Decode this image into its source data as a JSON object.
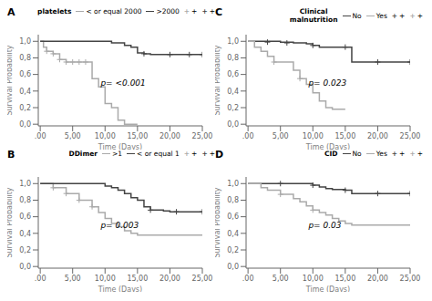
{
  "chart_data": [
    {
      "type": "step",
      "title": "A",
      "annotation": "p= <0.001",
      "legend_title": "platelets",
      "legend": "upper right",
      "xlabel": "Time (Days)",
      "ylabel": "Survival Probability",
      "xlim": [
        -0.3,
        25
      ],
      "ylim": [
        -0.02,
        1.08
      ],
      "xticks": [
        {
          "value": 0,
          "label": ".00"
        },
        {
          "value": 5,
          "label": "5,00"
        },
        {
          "value": 10,
          "label": "10,00"
        },
        {
          "value": 15,
          "label": "15,00"
        },
        {
          "value": 20,
          "label": "20,00"
        },
        {
          "value": 25,
          "label": "25,00"
        }
      ],
      "yticks": [
        {
          "value": 0.0,
          "label": "0,0"
        },
        {
          "value": 0.2,
          "label": "0,2"
        },
        {
          "value": 0.4,
          "label": "0,4"
        },
        {
          "value": 0.6,
          "label": "0,6"
        },
        {
          "value": 0.8,
          "label": "0,8"
        },
        {
          "value": 1.0,
          "label": "1,0"
        }
      ],
      "series": [
        {
          "name": "< or equal 2000",
          "color": "#aaaaaa",
          "type": "step",
          "x": [
            0,
            0.5,
            1,
            2,
            3,
            4,
            5,
            6,
            7,
            8,
            9,
            10,
            11,
            12,
            13,
            14,
            15
          ],
          "values": [
            1.0,
            0.93,
            0.88,
            0.85,
            0.78,
            0.75,
            0.75,
            0.75,
            0.75,
            0.55,
            0.45,
            0.25,
            0.2,
            0.05,
            0.0,
            0.0,
            0.0
          ]
        },
        {
          "name": ">2000",
          "color": "#444444",
          "type": "step",
          "x": [
            0,
            10,
            11,
            12,
            13,
            14,
            15,
            16,
            17,
            18,
            19,
            20,
            21,
            22,
            23,
            24,
            25
          ],
          "values": [
            1.0,
            1.0,
            0.98,
            0.98,
            0.95,
            0.93,
            0.86,
            0.85,
            0.84,
            0.84,
            0.84,
            0.84,
            0.84,
            0.84,
            0.84,
            0.84,
            0.84
          ]
        },
        {
          "name": "+",
          "color": "#aaaaaa",
          "type": "scatter",
          "marker": "+",
          "x": [
            1,
            2,
            3,
            4,
            5,
            6,
            7
          ],
          "values": [
            0.88,
            0.85,
            0.78,
            0.75,
            0.75,
            0.75,
            0.75
          ]
        },
        {
          "name": "+",
          "color": "#444444",
          "type": "scatter",
          "marker": "+",
          "x": [
            16,
            20,
            23,
            25
          ],
          "values": [
            0.85,
            0.84,
            0.84,
            0.84
          ]
        }
      ]
    },
    {
      "type": "step",
      "title": "B",
      "annotation": "p= 0.003",
      "legend_title": "DDimer",
      "legend": "upper right",
      "xlabel": "Time (Days)",
      "ylabel": "Survival Probability",
      "xlim": [
        -0.3,
        25
      ],
      "ylim": [
        -0.02,
        1.08
      ],
      "xticks": [
        {
          "value": 0,
          "label": ".00"
        },
        {
          "value": 5,
          "label": "5,00"
        },
        {
          "value": 10,
          "label": "10,00"
        },
        {
          "value": 15,
          "label": "15,00"
        },
        {
          "value": 20,
          "label": "20,00"
        },
        {
          "value": 25,
          "label": "25,00"
        }
      ],
      "yticks": [
        {
          "value": 0.0,
          "label": "0,0"
        },
        {
          "value": 0.2,
          "label": "0,2"
        },
        {
          "value": 0.4,
          "label": "0,4"
        },
        {
          "value": 0.6,
          "label": "0,6"
        },
        {
          "value": 0.8,
          "label": "0,8"
        },
        {
          "value": 1.0,
          "label": "1,0"
        }
      ],
      "series": [
        {
          "name": ">1",
          "color": "#aaaaaa",
          "type": "step",
          "x": [
            0,
            2,
            4,
            6,
            8,
            9,
            10,
            11,
            12,
            13,
            14,
            15,
            16,
            25
          ],
          "values": [
            1.0,
            0.95,
            0.88,
            0.8,
            0.72,
            0.65,
            0.58,
            0.52,
            0.48,
            0.43,
            0.4,
            0.38,
            0.38,
            0.38
          ]
        },
        {
          "name": "< or equal 1",
          "color": "#444444",
          "type": "step",
          "x": [
            0,
            9,
            10,
            11,
            12,
            13,
            14,
            15,
            16,
            17,
            18,
            19,
            20,
            21,
            22,
            25
          ],
          "values": [
            1.0,
            1.0,
            0.97,
            0.95,
            0.92,
            0.88,
            0.83,
            0.8,
            0.72,
            0.68,
            0.68,
            0.67,
            0.66,
            0.66,
            0.66,
            0.66
          ]
        },
        {
          "name": "+",
          "color": "#aaaaaa",
          "type": "scatter",
          "marker": "+",
          "x": [
            2,
            4,
            6,
            8
          ],
          "values": [
            0.95,
            0.88,
            0.8,
            0.72
          ]
        },
        {
          "name": "+",
          "color": "#444444",
          "type": "scatter",
          "marker": "+",
          "x": [
            17,
            21,
            25
          ],
          "values": [
            0.68,
            0.66,
            0.66
          ]
        }
      ]
    },
    {
      "type": "step",
      "title": "C",
      "annotation": "p= 0.023",
      "legend_title": "Clinical\nmalnutrition",
      "legend": "upper right",
      "xlabel": "Time (Days)",
      "ylabel": "Survival Probability",
      "xlim": [
        -0.3,
        25
      ],
      "ylim": [
        -0.02,
        1.08
      ],
      "xticks": [
        {
          "value": 0,
          "label": ".00"
        },
        {
          "value": 5,
          "label": "5,00"
        },
        {
          "value": 10,
          "label": "10,00"
        },
        {
          "value": 15,
          "label": "15,00"
        },
        {
          "value": 20,
          "label": "20,00"
        },
        {
          "value": 25,
          "label": "25,00"
        }
      ],
      "yticks": [
        {
          "value": 0.0,
          "label": "0,0"
        },
        {
          "value": 0.2,
          "label": "0,2"
        },
        {
          "value": 0.4,
          "label": "0,4"
        },
        {
          "value": 0.6,
          "label": "0,6"
        },
        {
          "value": 0.8,
          "label": "0,8"
        },
        {
          "value": 1.0,
          "label": "1,0"
        }
      ],
      "series": [
        {
          "name": "No",
          "color": "#444444",
          "type": "step",
          "x": [
            0,
            5,
            7,
            9,
            10,
            11,
            12,
            13,
            14,
            15,
            16,
            17,
            18,
            19,
            20,
            21,
            22,
            25
          ],
          "values": [
            1.0,
            0.99,
            0.98,
            0.97,
            0.95,
            0.93,
            0.93,
            0.93,
            0.93,
            0.93,
            0.75,
            0.75,
            0.75,
            0.75,
            0.75,
            0.75,
            0.75,
            0.75
          ]
        },
        {
          "name": "Yes",
          "color": "#aaaaaa",
          "type": "step",
          "x": [
            0,
            1,
            2,
            3,
            4,
            7,
            8,
            9,
            10,
            11,
            12,
            13,
            14,
            15
          ],
          "values": [
            1.0,
            0.93,
            0.88,
            0.82,
            0.75,
            0.65,
            0.55,
            0.48,
            0.38,
            0.28,
            0.2,
            0.18,
            0.18,
            0.18
          ]
        },
        {
          "name": "+",
          "color": "#444444",
          "type": "scatter",
          "marker": "+",
          "x": [
            3,
            6,
            10,
            15,
            20,
            25
          ],
          "values": [
            0.99,
            0.98,
            0.95,
            0.93,
            0.75,
            0.75
          ]
        },
        {
          "name": "+",
          "color": "#aaaaaa",
          "type": "scatter",
          "marker": "+",
          "x": [
            4,
            8
          ],
          "values": [
            0.75,
            0.55
          ]
        }
      ]
    },
    {
      "type": "step",
      "title": "D",
      "annotation": "p= 0.03",
      "legend_title": "CID",
      "legend": "upper right",
      "xlabel": "Time (Days)",
      "ylabel": "Survival Probability",
      "xlim": [
        -0.3,
        25
      ],
      "ylim": [
        -0.02,
        1.08
      ],
      "xticks": [
        {
          "value": 0,
          "label": ".00"
        },
        {
          "value": 5,
          "label": "5,00"
        },
        {
          "value": 10,
          "label": "10,00"
        },
        {
          "value": 15,
          "label": "15,00"
        },
        {
          "value": 20,
          "label": "20,00"
        },
        {
          "value": 25,
          "label": "25,00"
        }
      ],
      "yticks": [
        {
          "value": 0.0,
          "label": "0,0"
        },
        {
          "value": 0.2,
          "label": "0,2"
        },
        {
          "value": 0.4,
          "label": "0,4"
        },
        {
          "value": 0.6,
          "label": "0,6"
        },
        {
          "value": 0.8,
          "label": "0,8"
        },
        {
          "value": 1.0,
          "label": "1,0"
        }
      ],
      "series": [
        {
          "name": "No",
          "color": "#444444",
          "type": "step",
          "x": [
            0,
            5,
            10,
            11,
            12,
            13,
            14,
            15,
            16,
            17,
            18,
            19,
            20,
            21,
            22,
            25
          ],
          "values": [
            1.0,
            1.0,
            0.98,
            0.96,
            0.94,
            0.93,
            0.93,
            0.92,
            0.88,
            0.88,
            0.88,
            0.88,
            0.88,
            0.88,
            0.88,
            0.88
          ]
        },
        {
          "name": "Yes",
          "color": "#aaaaaa",
          "type": "step",
          "x": [
            0,
            2,
            3,
            5,
            7,
            8,
            9,
            10,
            11,
            12,
            13,
            14,
            15,
            16,
            17,
            18,
            25
          ],
          "values": [
            1.0,
            0.95,
            0.92,
            0.87,
            0.82,
            0.78,
            0.73,
            0.68,
            0.65,
            0.62,
            0.58,
            0.55,
            0.52,
            0.5,
            0.5,
            0.5,
            0.5
          ]
        },
        {
          "name": "+",
          "color": "#444444",
          "type": "scatter",
          "marker": "+",
          "x": [
            5,
            10,
            15,
            20,
            25
          ],
          "values": [
            1.0,
            0.98,
            0.92,
            0.88,
            0.88
          ]
        },
        {
          "name": "+",
          "color": "#aaaaaa",
          "type": "scatter",
          "marker": "+",
          "x": [
            5,
            10
          ],
          "values": [
            0.87,
            0.68
          ]
        }
      ]
    }
  ]
}
